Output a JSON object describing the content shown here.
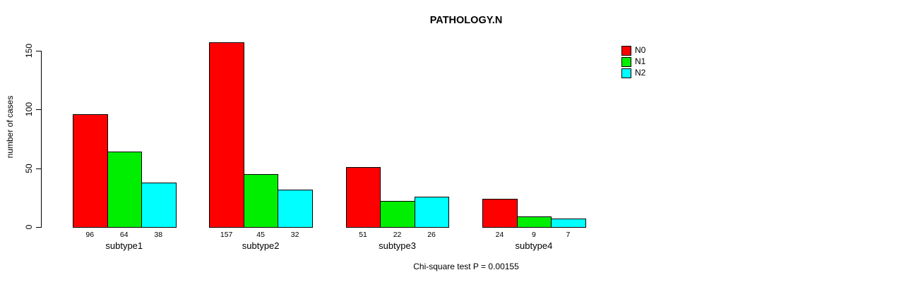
{
  "chart_data": {
    "type": "bar",
    "title": "PATHOLOGY.N",
    "ylabel": "number of cases",
    "xlabel": "",
    "categories": [
      "subtype1",
      "subtype2",
      "subtype3",
      "subtype4"
    ],
    "series": [
      {
        "name": "N0",
        "color": "#ff0000",
        "values": [
          96,
          157,
          51,
          24
        ]
      },
      {
        "name": "N1",
        "color": "#00ee00",
        "values": [
          64,
          45,
          22,
          9
        ]
      },
      {
        "name": "N2",
        "color": "#00ffff",
        "values": [
          38,
          32,
          26,
          7
        ]
      }
    ],
    "yticks": [
      0,
      50,
      100,
      150
    ],
    "ylim": [
      0,
      157
    ],
    "grid": false,
    "legend_position": "top-right",
    "bar_value_labels": true,
    "annotation": "Chi-square test P = 0.00155"
  }
}
